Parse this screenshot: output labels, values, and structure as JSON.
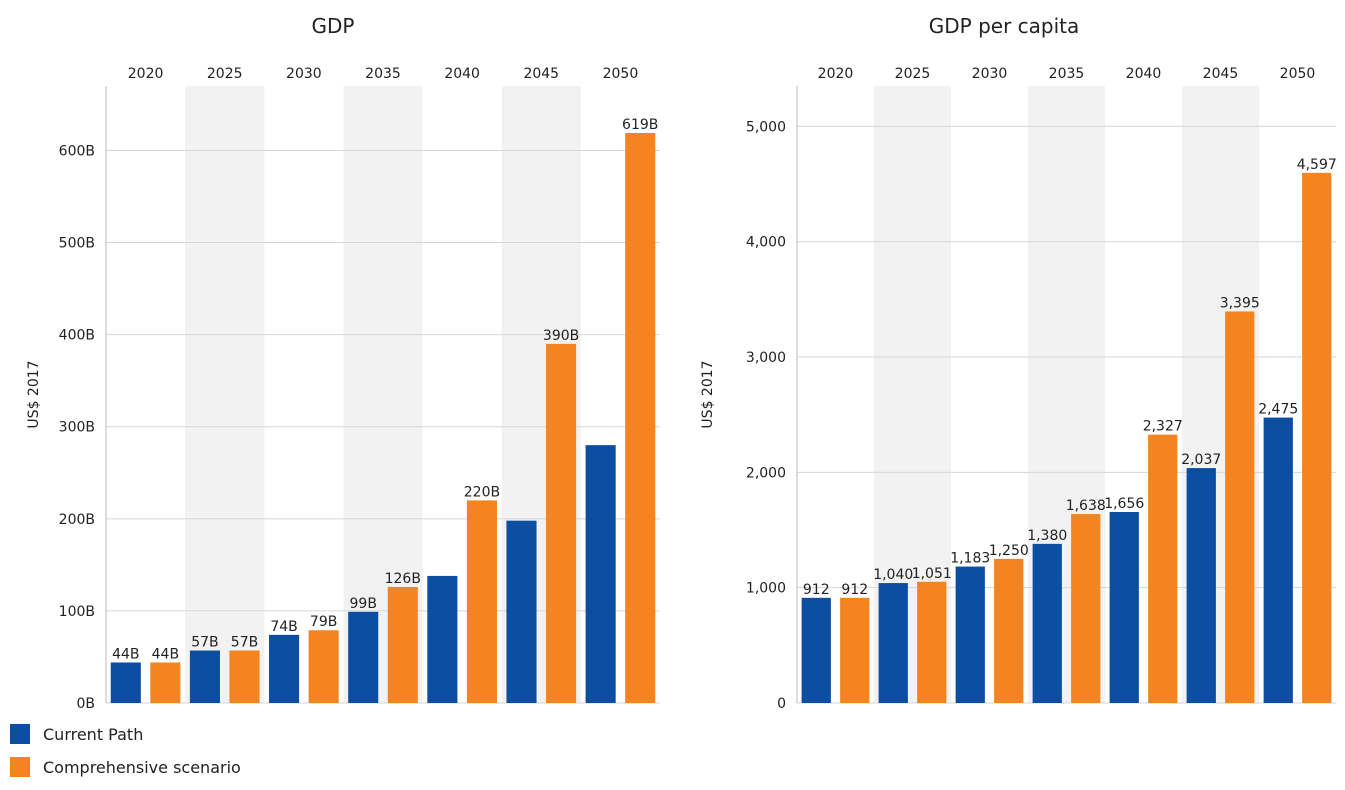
{
  "colors": {
    "current_path": "#0b4ea2",
    "comprehensive": "#f3841f",
    "band": "#f2f2f2",
    "grid": "#d6d6d6"
  },
  "legend": [
    {
      "label": "Current Path",
      "color": "#0b4ea2"
    },
    {
      "label": "Comprehensive scenario",
      "color": "#f3841f"
    }
  ],
  "chart_data": [
    {
      "type": "bar",
      "title": "GDP",
      "ylabel": "US$ 2017",
      "xlabel": "",
      "categories": [
        "2020",
        "2025",
        "2030",
        "2035",
        "2040",
        "2045",
        "2050"
      ],
      "x_axis_position": "top",
      "ylim": [
        0,
        670
      ],
      "yticks": [
        0,
        100,
        200,
        300,
        400,
        500,
        600
      ],
      "ytick_labels": [
        "0B",
        "100B",
        "200B",
        "300B",
        "400B",
        "500B",
        "600B"
      ],
      "grid": true,
      "series": [
        {
          "name": "Current Path",
          "values": [
            44,
            57,
            74,
            99,
            138,
            198,
            280
          ],
          "labels": [
            "44B",
            "57B",
            "74B",
            "99B",
            "",
            "",
            ""
          ]
        },
        {
          "name": "Comprehensive scenario",
          "values": [
            44,
            57,
            79,
            126,
            220,
            390,
            619
          ],
          "labels": [
            "44B",
            "57B",
            "79B",
            "126B",
            "220B",
            "390B",
            "619B"
          ]
        }
      ]
    },
    {
      "type": "bar",
      "title": "GDP per capita",
      "ylabel": "US$ 2017",
      "xlabel": "",
      "categories": [
        "2020",
        "2025",
        "2030",
        "2035",
        "2040",
        "2045",
        "2050"
      ],
      "x_axis_position": "top",
      "ylim": [
        0,
        5350
      ],
      "yticks": [
        0,
        1000,
        2000,
        3000,
        4000,
        5000
      ],
      "ytick_labels": [
        "0",
        "1,000",
        "2,000",
        "3,000",
        "4,000",
        "5,000"
      ],
      "grid": true,
      "series": [
        {
          "name": "Current Path",
          "values": [
            912,
            1040,
            1183,
            1380,
            1656,
            2037,
            2475
          ],
          "labels": [
            "912",
            "1,040",
            "1,183",
            "1,380",
            "1,656",
            "2,037",
            "2,475"
          ]
        },
        {
          "name": "Comprehensive scenario",
          "values": [
            912,
            1051,
            1250,
            1638,
            2327,
            3395,
            4597
          ],
          "labels": [
            "912",
            "1,051",
            "1,250",
            "1,638",
            "2,327",
            "3,395",
            "4,597"
          ]
        }
      ]
    }
  ]
}
